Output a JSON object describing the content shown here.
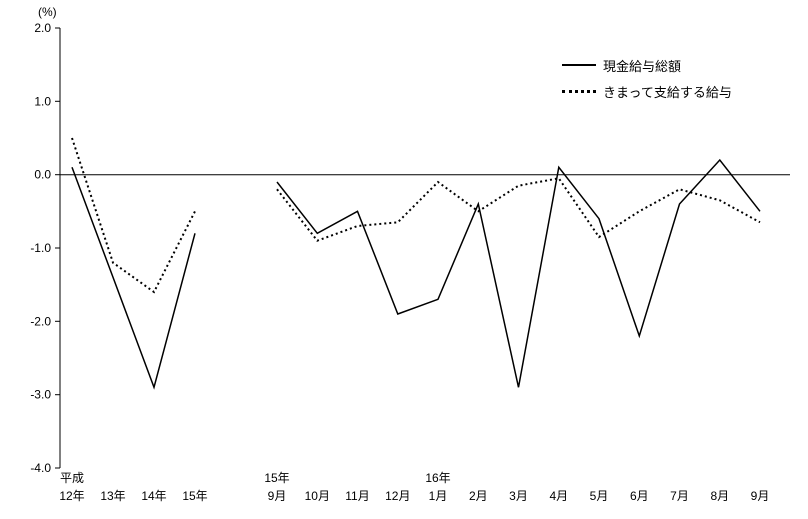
{
  "chart_data": {
    "type": "line",
    "title": "",
    "unit_label": "(%)",
    "xlabel": "",
    "ylabel": "",
    "ylim": [
      -4.0,
      2.0
    ],
    "yticks": [
      2.0,
      1.0,
      0.0,
      -1.0,
      -2.0,
      -3.0,
      -4.0
    ],
    "grid": false,
    "legend_position": "top-right",
    "line_color": "#000000",
    "x_groups": [
      {
        "labels": [
          "12年",
          "13年",
          "14年",
          "15年"
        ],
        "annotations": [
          {
            "index": 0,
            "label": "平成"
          }
        ]
      },
      {
        "labels": [
          "9月",
          "10月",
          "11月",
          "12月",
          "1月",
          "2月",
          "3月",
          "4月",
          "5月",
          "6月",
          "7月",
          "8月",
          "9月"
        ],
        "annotations": [
          {
            "index": 0,
            "label": "15年"
          },
          {
            "index": 4,
            "label": "16年"
          }
        ]
      }
    ],
    "series": [
      {
        "name": "現金給与総額",
        "line_style": "solid",
        "values": [
          [
            0.1,
            -1.4,
            -2.9,
            -0.8
          ],
          [
            -0.1,
            -0.8,
            -0.5,
            -1.9,
            -1.7,
            -0.4,
            -2.9,
            0.1,
            -0.6,
            -2.2,
            -0.4,
            0.2,
            -0.5
          ]
        ]
      },
      {
        "name": "きまって支給する給与",
        "line_style": "dotted",
        "values": [
          [
            0.5,
            -1.2,
            -1.6,
            -0.5
          ],
          [
            -0.2,
            -0.9,
            -0.7,
            -0.65,
            -0.1,
            -0.5,
            -0.15,
            -0.05,
            -0.85,
            -0.5,
            -0.2,
            -0.35,
            -0.65
          ]
        ]
      }
    ],
    "legend": [
      "現金給与総額",
      "きまって支給する給与"
    ]
  }
}
